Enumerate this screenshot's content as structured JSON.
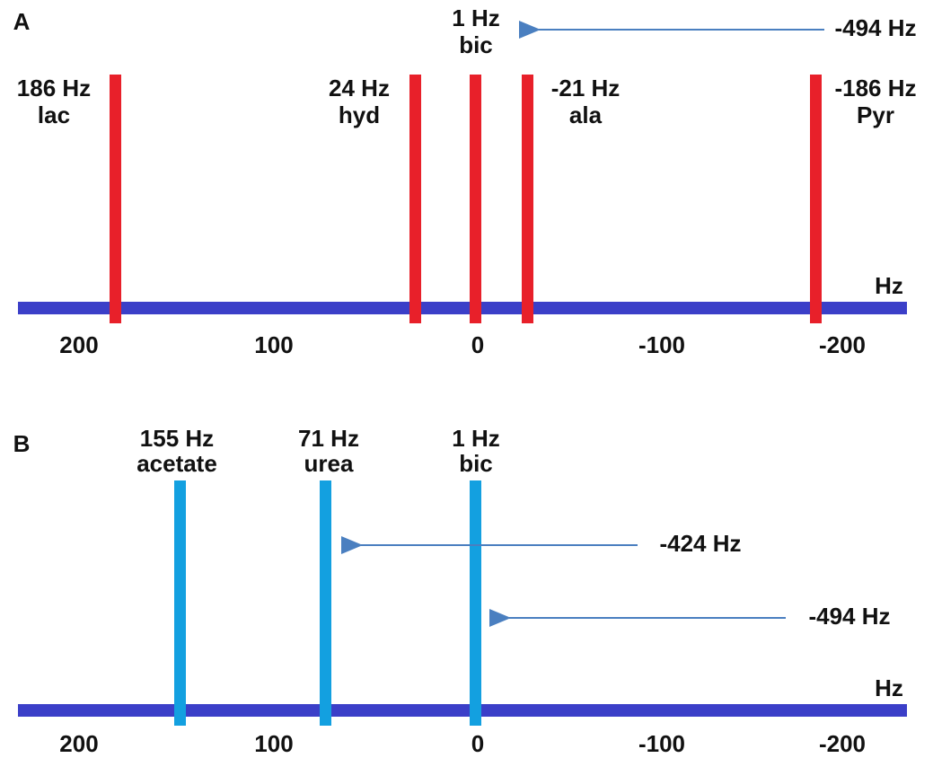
{
  "panels": [
    {
      "label": "A",
      "axis_unit": "Hz",
      "axis_labels": [
        "200",
        "100",
        "0",
        "-100",
        "-200"
      ],
      "peaks": [
        {
          "shift": "186 Hz",
          "name": "lac"
        },
        {
          "shift": "24 Hz",
          "name": "hyd"
        },
        {
          "shift": "1 Hz",
          "name": "bic"
        },
        {
          "shift": "-21 Hz",
          "name": "ala"
        },
        {
          "shift": "-186 Hz",
          "name": "Pyr"
        }
      ],
      "arrows": [
        "-494 Hz"
      ]
    },
    {
      "label": "B",
      "axis_unit": "Hz",
      "axis_labels": [
        "200",
        "100",
        "0",
        "-100",
        "-200"
      ],
      "peaks": [
        {
          "shift": "155 Hz",
          "name": "acetate"
        },
        {
          "shift": "71 Hz",
          "name": "urea"
        },
        {
          "shift": "1 Hz",
          "name": "bic"
        }
      ],
      "arrows": [
        "-424 Hz",
        "-494 Hz"
      ]
    }
  ]
}
